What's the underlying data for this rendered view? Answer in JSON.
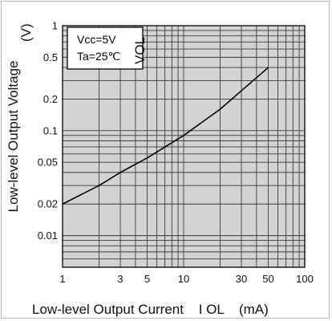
{
  "chart_data": {
    "type": "line",
    "xscale": "log",
    "yscale": "log",
    "xlim": [
      1,
      100
    ],
    "ylim": [
      0.005,
      1
    ],
    "xlabel": "Low-level Output Current",
    "xlabel_symbol": "I OL",
    "xlabel_unit": "(mA)",
    "ylabel": "Low-level Output Voltage",
    "ylabel_symbol": "VOL",
    "ylabel_unit": "(V)",
    "x_ticks": [
      1,
      3,
      5,
      10,
      30,
      50,
      100
    ],
    "x_tick_labels": [
      "1",
      "3",
      "5",
      "10",
      "30",
      "50",
      "100"
    ],
    "y_ticks": [
      1,
      0.5,
      0.2,
      0.1,
      0.05,
      0.02,
      0.01
    ],
    "y_tick_labels": [
      "1",
      "0.5",
      "0.2",
      "0.1",
      "0.05",
      "0.02",
      "0.01"
    ],
    "grid": true,
    "annotation": [
      "Vcc=5V",
      "Ta=25℃"
    ],
    "series": [
      {
        "x": [
          1,
          2,
          3,
          5,
          10,
          20,
          30,
          50
        ],
        "y": [
          0.02,
          0.03,
          0.04,
          0.055,
          0.09,
          0.16,
          0.24,
          0.4
        ]
      }
    ],
    "colors": {
      "plot_bg": "#d3d3d3",
      "grid": "#3a3a3a",
      "line": "#000000",
      "annotation_bg": "#ffffff"
    }
  }
}
